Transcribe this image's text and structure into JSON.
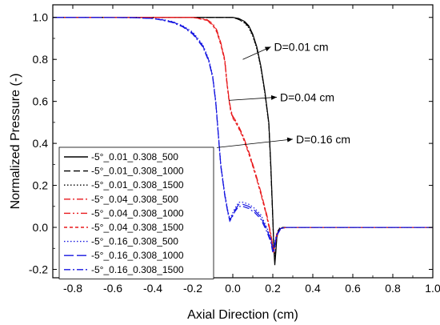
{
  "chart_data": {
    "type": "line",
    "xlabel": "Axial Direction (cm)",
    "ylabel": "Normalized Pressure (-)",
    "xlim": [
      -0.9,
      1.0
    ],
    "ylim": [
      -0.24,
      1.06
    ],
    "xticks": [
      -0.8,
      -0.6,
      -0.4,
      -0.2,
      0.0,
      0.2,
      0.4,
      0.6,
      0.8,
      1.0
    ],
    "xtick_labels": [
      "-0.8",
      "-0.6",
      "-0.4",
      "-0.2",
      "0.0",
      "0.2",
      "0.4",
      "0.6",
      "0.8",
      "1.0"
    ],
    "yticks": [
      -0.2,
      0.0,
      0.2,
      0.4,
      0.6,
      0.8,
      1.0
    ],
    "ytick_labels": [
      "-0.2",
      "0.0",
      "0.2",
      "0.4",
      "0.6",
      "0.8",
      "1.0"
    ],
    "grid": false,
    "legend_position": "bottom-left",
    "series": [
      {
        "name": "-5°_0.01_0.308_500",
        "color": "#000000",
        "dash": "solid",
        "points": [
          [
            -0.9,
            1.0
          ],
          [
            0.0,
            1.0
          ],
          [
            0.03,
            0.995
          ],
          [
            0.06,
            0.98
          ],
          [
            0.08,
            0.96
          ],
          [
            0.1,
            0.92
          ],
          [
            0.12,
            0.86
          ],
          [
            0.14,
            0.77
          ],
          [
            0.16,
            0.65
          ],
          [
            0.18,
            0.5
          ],
          [
            0.19,
            0.3
          ],
          [
            0.2,
            0.05
          ],
          [
            0.205,
            -0.1
          ],
          [
            0.21,
            -0.18
          ],
          [
            0.215,
            -0.12
          ],
          [
            0.22,
            -0.05
          ],
          [
            0.23,
            -0.01
          ],
          [
            0.25,
            0.0
          ],
          [
            1.0,
            0.0
          ]
        ]
      },
      {
        "name": "-5°_0.01_0.308_1000",
        "color": "#000000",
        "dash": "dash",
        "points": [
          [
            -0.9,
            1.0
          ],
          [
            0.0,
            1.0
          ],
          [
            0.03,
            0.99
          ],
          [
            0.06,
            0.975
          ],
          [
            0.08,
            0.955
          ],
          [
            0.1,
            0.915
          ],
          [
            0.12,
            0.855
          ],
          [
            0.14,
            0.765
          ],
          [
            0.16,
            0.645
          ],
          [
            0.18,
            0.495
          ],
          [
            0.19,
            0.29
          ],
          [
            0.2,
            0.04
          ],
          [
            0.205,
            -0.09
          ],
          [
            0.21,
            -0.16
          ],
          [
            0.215,
            -0.11
          ],
          [
            0.22,
            -0.04
          ],
          [
            0.23,
            -0.01
          ],
          [
            0.25,
            0.0
          ],
          [
            1.0,
            0.0
          ]
        ]
      },
      {
        "name": "-5°_0.01_0.308_1500",
        "color": "#000000",
        "dash": "dot",
        "points": [
          [
            -0.9,
            1.0
          ],
          [
            0.0,
            1.0
          ],
          [
            0.03,
            0.99
          ],
          [
            0.06,
            0.972
          ],
          [
            0.08,
            0.95
          ],
          [
            0.1,
            0.91
          ],
          [
            0.12,
            0.85
          ],
          [
            0.14,
            0.76
          ],
          [
            0.16,
            0.64
          ],
          [
            0.18,
            0.49
          ],
          [
            0.19,
            0.285
          ],
          [
            0.2,
            0.035
          ],
          [
            0.205,
            -0.085
          ],
          [
            0.21,
            -0.15
          ],
          [
            0.215,
            -0.1
          ],
          [
            0.22,
            -0.035
          ],
          [
            0.23,
            -0.005
          ],
          [
            0.25,
            0.0
          ],
          [
            1.0,
            0.0
          ]
        ]
      },
      {
        "name": "-5°_0.04_0.308_500",
        "color": "#e8191c",
        "dash": "dashdot",
        "points": [
          [
            -0.9,
            1.0
          ],
          [
            -0.2,
            1.0
          ],
          [
            -0.13,
            0.99
          ],
          [
            -0.1,
            0.97
          ],
          [
            -0.08,
            0.94
          ],
          [
            -0.06,
            0.88
          ],
          [
            -0.04,
            0.8
          ],
          [
            -0.03,
            0.7
          ],
          [
            -0.02,
            0.62
          ],
          [
            -0.01,
            0.56
          ],
          [
            0.0,
            0.53
          ],
          [
            0.02,
            0.5
          ],
          [
            0.05,
            0.44
          ],
          [
            0.08,
            0.36
          ],
          [
            0.11,
            0.27
          ],
          [
            0.14,
            0.17
          ],
          [
            0.17,
            0.06
          ],
          [
            0.19,
            -0.03
          ],
          [
            0.2,
            -0.09
          ],
          [
            0.205,
            -0.11
          ],
          [
            0.21,
            -0.08
          ],
          [
            0.22,
            -0.03
          ],
          [
            0.24,
            -0.005
          ],
          [
            0.27,
            0.0
          ],
          [
            1.0,
            0.0
          ]
        ]
      },
      {
        "name": "-5°_0.04_0.308_1000",
        "color": "#e8191c",
        "dash": "dashdotdot",
        "points": [
          [
            -0.9,
            1.0
          ],
          [
            -0.2,
            1.0
          ],
          [
            -0.13,
            0.988
          ],
          [
            -0.1,
            0.965
          ],
          [
            -0.08,
            0.935
          ],
          [
            -0.06,
            0.875
          ],
          [
            -0.04,
            0.795
          ],
          [
            -0.03,
            0.695
          ],
          [
            -0.02,
            0.615
          ],
          [
            -0.01,
            0.555
          ],
          [
            0.0,
            0.525
          ],
          [
            0.02,
            0.495
          ],
          [
            0.05,
            0.435
          ],
          [
            0.08,
            0.355
          ],
          [
            0.11,
            0.265
          ],
          [
            0.14,
            0.165
          ],
          [
            0.17,
            0.055
          ],
          [
            0.19,
            -0.035
          ],
          [
            0.2,
            -0.095
          ],
          [
            0.205,
            -0.115
          ],
          [
            0.21,
            -0.085
          ],
          [
            0.22,
            -0.035
          ],
          [
            0.24,
            -0.005
          ],
          [
            0.27,
            0.0
          ],
          [
            1.0,
            0.0
          ]
        ]
      },
      {
        "name": "-5°_0.04_0.308_1500",
        "color": "#e8191c",
        "dash": "shortdash",
        "points": [
          [
            -0.9,
            1.0
          ],
          [
            -0.2,
            1.0
          ],
          [
            -0.13,
            0.986
          ],
          [
            -0.1,
            0.962
          ],
          [
            -0.08,
            0.93
          ],
          [
            -0.06,
            0.87
          ],
          [
            -0.04,
            0.79
          ],
          [
            -0.03,
            0.69
          ],
          [
            -0.02,
            0.61
          ],
          [
            -0.01,
            0.55
          ],
          [
            0.0,
            0.52
          ],
          [
            0.02,
            0.49
          ],
          [
            0.05,
            0.43
          ],
          [
            0.08,
            0.35
          ],
          [
            0.11,
            0.26
          ],
          [
            0.14,
            0.16
          ],
          [
            0.17,
            0.05
          ],
          [
            0.19,
            -0.04
          ],
          [
            0.2,
            -0.1
          ],
          [
            0.205,
            -0.12
          ],
          [
            0.21,
            -0.09
          ],
          [
            0.22,
            -0.04
          ],
          [
            0.24,
            -0.005
          ],
          [
            0.27,
            0.0
          ],
          [
            1.0,
            0.0
          ]
        ]
      },
      {
        "name": "-5°_0.16_0.308_500",
        "color": "#1515e0",
        "dash": "dot",
        "points": [
          [
            -0.9,
            1.0
          ],
          [
            -0.5,
            0.999
          ],
          [
            -0.4,
            0.995
          ],
          [
            -0.35,
            0.99
          ],
          [
            -0.3,
            0.98
          ],
          [
            -0.25,
            0.96
          ],
          [
            -0.2,
            0.93
          ],
          [
            -0.15,
            0.87
          ],
          [
            -0.12,
            0.8
          ],
          [
            -0.1,
            0.72
          ],
          [
            -0.085,
            0.6
          ],
          [
            -0.075,
            0.48
          ],
          [
            -0.06,
            0.3
          ],
          [
            -0.04,
            0.16
          ],
          [
            -0.025,
            0.08
          ],
          [
            -0.015,
            0.04
          ],
          [
            -0.005,
            0.06
          ],
          [
            0.01,
            0.09
          ],
          [
            0.03,
            0.12
          ],
          [
            0.05,
            0.12
          ],
          [
            0.08,
            0.11
          ],
          [
            0.11,
            0.09
          ],
          [
            0.14,
            0.06
          ],
          [
            0.17,
            0.0
          ],
          [
            0.19,
            -0.05
          ],
          [
            0.2,
            -0.1
          ],
          [
            0.205,
            -0.1
          ],
          [
            0.21,
            -0.07
          ],
          [
            0.22,
            -0.03
          ],
          [
            0.24,
            -0.005
          ],
          [
            0.27,
            0.0
          ],
          [
            1.0,
            0.0
          ]
        ]
      },
      {
        "name": "-5°_0.16_0.308_1000",
        "color": "#1515e0",
        "dash": "longdash",
        "points": [
          [
            -0.9,
            1.0
          ],
          [
            -0.5,
            0.999
          ],
          [
            -0.4,
            0.995
          ],
          [
            -0.35,
            0.988
          ],
          [
            -0.3,
            0.978
          ],
          [
            -0.25,
            0.958
          ],
          [
            -0.2,
            0.925
          ],
          [
            -0.15,
            0.865
          ],
          [
            -0.12,
            0.795
          ],
          [
            -0.1,
            0.715
          ],
          [
            -0.085,
            0.595
          ],
          [
            -0.075,
            0.475
          ],
          [
            -0.06,
            0.295
          ],
          [
            -0.04,
            0.155
          ],
          [
            -0.025,
            0.075
          ],
          [
            -0.015,
            0.035
          ],
          [
            -0.005,
            0.05
          ],
          [
            0.01,
            0.08
          ],
          [
            0.03,
            0.11
          ],
          [
            0.05,
            0.11
          ],
          [
            0.08,
            0.1
          ],
          [
            0.11,
            0.08
          ],
          [
            0.14,
            0.05
          ],
          [
            0.17,
            -0.01
          ],
          [
            0.19,
            -0.06
          ],
          [
            0.2,
            -0.11
          ],
          [
            0.205,
            -0.11
          ],
          [
            0.21,
            -0.08
          ],
          [
            0.22,
            -0.035
          ],
          [
            0.24,
            -0.005
          ],
          [
            0.27,
            0.0
          ],
          [
            1.0,
            0.0
          ]
        ]
      },
      {
        "name": "-5°_0.16_0.308_1500",
        "color": "#1515e0",
        "dash": "dashdot",
        "points": [
          [
            -0.9,
            1.0
          ],
          [
            -0.5,
            0.999
          ],
          [
            -0.4,
            0.995
          ],
          [
            -0.35,
            0.986
          ],
          [
            -0.3,
            0.975
          ],
          [
            -0.25,
            0.955
          ],
          [
            -0.2,
            0.92
          ],
          [
            -0.15,
            0.86
          ],
          [
            -0.12,
            0.79
          ],
          [
            -0.1,
            0.71
          ],
          [
            -0.085,
            0.59
          ],
          [
            -0.075,
            0.47
          ],
          [
            -0.06,
            0.29
          ],
          [
            -0.04,
            0.15
          ],
          [
            -0.025,
            0.07
          ],
          [
            -0.015,
            0.03
          ],
          [
            -0.005,
            0.045
          ],
          [
            0.01,
            0.075
          ],
          [
            0.03,
            0.1
          ],
          [
            0.05,
            0.1
          ],
          [
            0.08,
            0.09
          ],
          [
            0.11,
            0.07
          ],
          [
            0.14,
            0.04
          ],
          [
            0.17,
            -0.02
          ],
          [
            0.19,
            -0.07
          ],
          [
            0.2,
            -0.12
          ],
          [
            0.205,
            -0.12
          ],
          [
            0.21,
            -0.09
          ],
          [
            0.22,
            -0.04
          ],
          [
            0.24,
            -0.005
          ],
          [
            0.27,
            0.0
          ],
          [
            1.0,
            0.0
          ]
        ]
      }
    ],
    "annotations": [
      {
        "text": "D=0.01 cm",
        "arrow_from": [
          0.05,
          0.8
        ],
        "arrow_to": [
          0.19,
          0.86
        ]
      },
      {
        "text": "D=0.04 cm",
        "arrow_from": [
          -0.02,
          0.605
        ],
        "arrow_to": [
          0.22,
          0.62
        ]
      },
      {
        "text": "D=0.16 cm",
        "arrow_from": [
          -0.08,
          0.38
        ],
        "arrow_to": [
          0.3,
          0.42
        ]
      }
    ]
  }
}
